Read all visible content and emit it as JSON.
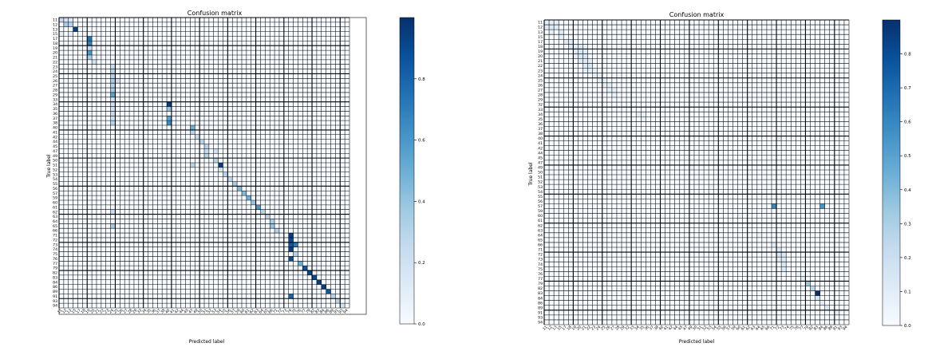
{
  "chart_data": [
    {
      "type": "heatmap",
      "title": "Confusion matrix",
      "xlabel": "Predicted label",
      "ylabel": "True label",
      "labels": [
        "11",
        "12",
        "13",
        "15",
        "17",
        "18",
        "19",
        "20",
        "21",
        "22",
        "23",
        "24",
        "25",
        "26",
        "27",
        "28",
        "29",
        "33",
        "34",
        "35",
        "36",
        "37",
        "38",
        "40",
        "41",
        "42",
        "44",
        "45",
        "47",
        "49",
        "50",
        "51",
        "52",
        "53",
        "54",
        "55",
        "56",
        "57",
        "59",
        "60",
        "61",
        "62",
        "63",
        "64",
        "65",
        "66",
        "71",
        "72",
        "73",
        "74",
        "75",
        "76",
        "77",
        "79",
        "82",
        "83",
        "84",
        "86",
        "89",
        "91",
        "93",
        "94"
      ],
      "vmin": 0,
      "vmax": 1.0,
      "colorbar_ticks": [
        0.0,
        0.2,
        0.4,
        0.6,
        0.8
      ],
      "colorbar_tick_labels": [
        "0.0",
        "0.2",
        "0.4",
        "0.6",
        "0.8"
      ],
      "colormap": [
        "#f7fbff",
        "#deebf7",
        "#c6dbef",
        "#9ecae1",
        "#6baed6",
        "#4292c6",
        "#2171b5",
        "#08519c",
        "#08306b"
      ],
      "cells": [
        [
          0,
          0,
          0.25
        ],
        [
          0,
          1,
          0.2
        ],
        [
          0,
          2,
          0.15
        ],
        [
          1,
          1,
          0.35
        ],
        [
          1,
          2,
          0.3
        ],
        [
          2,
          3,
          0.95
        ],
        [
          3,
          0,
          0.1
        ],
        [
          3,
          2,
          0.1
        ],
        [
          4,
          6,
          0.75
        ],
        [
          5,
          6,
          0.7
        ],
        [
          6,
          6,
          0.25
        ],
        [
          7,
          6,
          0.6
        ],
        [
          8,
          6,
          0.35
        ],
        [
          9,
          7,
          0.2
        ],
        [
          10,
          11,
          0.25
        ],
        [
          11,
          11,
          0.3
        ],
        [
          12,
          11,
          0.3
        ],
        [
          13,
          11,
          0.35
        ],
        [
          13,
          12,
          0.2
        ],
        [
          14,
          11,
          0.3
        ],
        [
          15,
          11,
          0.35
        ],
        [
          16,
          11,
          0.55
        ],
        [
          17,
          11,
          0.2
        ],
        [
          18,
          23,
          0.95
        ],
        [
          18,
          11,
          0.2
        ],
        [
          19,
          23,
          0.4
        ],
        [
          19,
          11,
          0.2
        ],
        [
          20,
          11,
          0.25
        ],
        [
          21,
          23,
          0.55
        ],
        [
          21,
          11,
          0.2
        ],
        [
          22,
          23,
          0.65
        ],
        [
          22,
          11,
          0.3
        ],
        [
          23,
          28,
          0.5
        ],
        [
          24,
          28,
          0.3
        ],
        [
          25,
          29,
          0.25
        ],
        [
          26,
          30,
          0.3
        ],
        [
          27,
          31,
          0.3
        ],
        [
          28,
          31,
          0.25
        ],
        [
          28,
          33,
          0.2
        ],
        [
          29,
          31,
          0.3
        ],
        [
          30,
          33,
          0.3
        ],
        [
          31,
          34,
          0.95
        ],
        [
          31,
          28,
          0.3
        ],
        [
          32,
          34,
          0.2
        ],
        [
          33,
          35,
          0.3
        ],
        [
          34,
          36,
          0.3
        ],
        [
          35,
          37,
          0.35
        ],
        [
          36,
          38,
          0.45
        ],
        [
          37,
          39,
          0.45
        ],
        [
          38,
          40,
          0.5
        ],
        [
          39,
          41,
          0.4
        ],
        [
          40,
          42,
          0.6
        ],
        [
          41,
          43,
          0.3
        ],
        [
          41,
          11,
          0.25
        ],
        [
          42,
          44,
          0.3
        ],
        [
          43,
          45,
          0.35
        ],
        [
          44,
          45,
          0.4
        ],
        [
          44,
          11,
          0.35
        ],
        [
          45,
          46,
          0.3
        ],
        [
          46,
          49,
          0.95
        ],
        [
          47,
          49,
          0.9
        ],
        [
          48,
          49,
          0.85
        ],
        [
          48,
          50,
          0.7
        ],
        [
          49,
          49,
          0.95
        ],
        [
          50,
          50,
          0.3
        ],
        [
          51,
          49,
          0.9
        ],
        [
          52,
          51,
          0.5
        ],
        [
          53,
          52,
          0.85
        ],
        [
          54,
          53,
          0.9
        ],
        [
          55,
          54,
          0.9
        ],
        [
          56,
          55,
          0.95
        ],
        [
          57,
          56,
          0.95
        ],
        [
          58,
          57,
          0.85
        ],
        [
          59,
          58,
          0.3
        ],
        [
          60,
          59,
          0.3
        ],
        [
          61,
          60,
          0.2
        ],
        [
          59,
          49,
          0.8
        ]
      ]
    },
    {
      "type": "heatmap",
      "title": "Confusion matrix",
      "xlabel": "Predicted label",
      "ylabel": "True label",
      "labels": [
        "11",
        "12",
        "13",
        "15",
        "17",
        "18",
        "19",
        "20",
        "21",
        "22",
        "23",
        "24",
        "25",
        "26",
        "27",
        "28",
        "29",
        "32",
        "33",
        "34",
        "35",
        "36",
        "37",
        "38",
        "40",
        "41",
        "42",
        "44",
        "45",
        "47",
        "49",
        "50",
        "51",
        "52",
        "53",
        "54",
        "55",
        "56",
        "57",
        "59",
        "60",
        "61",
        "62",
        "63",
        "64",
        "65",
        "66",
        "71",
        "72",
        "73",
        "74",
        "75",
        "76",
        "77",
        "79",
        "82",
        "83",
        "84",
        "86",
        "89",
        "91",
        "93",
        "94"
      ],
      "vmin": 0,
      "vmax": 0.9,
      "colorbar_ticks": [
        0.0,
        0.1,
        0.2,
        0.3,
        0.4,
        0.5,
        0.6,
        0.7,
        0.8
      ],
      "colorbar_tick_labels": [
        "0.0",
        "0.1",
        "0.2",
        "0.3",
        "0.4",
        "0.5",
        "0.6",
        "0.7",
        "0.8"
      ],
      "colormap": [
        "#f7fbff",
        "#deebf7",
        "#c6dbef",
        "#9ecae1",
        "#6baed6",
        "#4292c6",
        "#2171b5",
        "#08519c",
        "#08306b"
      ],
      "cells": [
        [
          0,
          0,
          0.1
        ],
        [
          0,
          1,
          0.08
        ],
        [
          0,
          2,
          0.08
        ],
        [
          1,
          0,
          0.1
        ],
        [
          1,
          1,
          0.12
        ],
        [
          1,
          2,
          0.1
        ],
        [
          2,
          1,
          0.08
        ],
        [
          2,
          3,
          0.1
        ],
        [
          3,
          3,
          0.08
        ],
        [
          4,
          4,
          0.12
        ],
        [
          4,
          5,
          0.1
        ],
        [
          5,
          5,
          0.12
        ],
        [
          5,
          6,
          0.1
        ],
        [
          5,
          7,
          0.12
        ],
        [
          5,
          8,
          0.08
        ],
        [
          6,
          6,
          0.12
        ],
        [
          6,
          7,
          0.15
        ],
        [
          6,
          8,
          0.12
        ],
        [
          7,
          6,
          0.1
        ],
        [
          7,
          7,
          0.15
        ],
        [
          7,
          8,
          0.15
        ],
        [
          8,
          7,
          0.12
        ],
        [
          8,
          8,
          0.12
        ],
        [
          8,
          9,
          0.1
        ],
        [
          9,
          8,
          0.12
        ],
        [
          9,
          9,
          0.12
        ],
        [
          10,
          8,
          0.1
        ],
        [
          10,
          9,
          0.1
        ],
        [
          10,
          10,
          0.08
        ],
        [
          11,
          10,
          0.1
        ],
        [
          11,
          11,
          0.08
        ],
        [
          12,
          11,
          0.1
        ],
        [
          12,
          12,
          0.08
        ],
        [
          13,
          12,
          0.08
        ],
        [
          13,
          13,
          0.08
        ],
        [
          14,
          13,
          0.08
        ],
        [
          14,
          14,
          0.08
        ],
        [
          15,
          14,
          0.06
        ],
        [
          19,
          19,
          0.1
        ],
        [
          19,
          20,
          0.08
        ],
        [
          20,
          20,
          0.08
        ],
        [
          22,
          22,
          0.06
        ],
        [
          26,
          26,
          0.06
        ],
        [
          30,
          30,
          0.06
        ],
        [
          34,
          34,
          0.06
        ],
        [
          40,
          40,
          0.06
        ],
        [
          44,
          44,
          0.06
        ],
        [
          46,
          47,
          0.1
        ],
        [
          47,
          48,
          0.12
        ],
        [
          48,
          48,
          0.15
        ],
        [
          48,
          49,
          0.12
        ],
        [
          49,
          48,
          0.1
        ],
        [
          49,
          49,
          0.12
        ],
        [
          50,
          49,
          0.15
        ],
        [
          51,
          49,
          0.12
        ],
        [
          52,
          52,
          0.08
        ],
        [
          53,
          53,
          0.1
        ],
        [
          54,
          54,
          0.35
        ],
        [
          55,
          55,
          0.25
        ],
        [
          56,
          56,
          0.9
        ],
        [
          57,
          56,
          0.15
        ],
        [
          58,
          57,
          0.1
        ],
        [
          59,
          58,
          0.12
        ],
        [
          60,
          60,
          0.08
        ],
        [
          38,
          47,
          0.6
        ],
        [
          38,
          57,
          0.55
        ],
        [
          24,
          48,
          0.12
        ]
      ]
    }
  ]
}
